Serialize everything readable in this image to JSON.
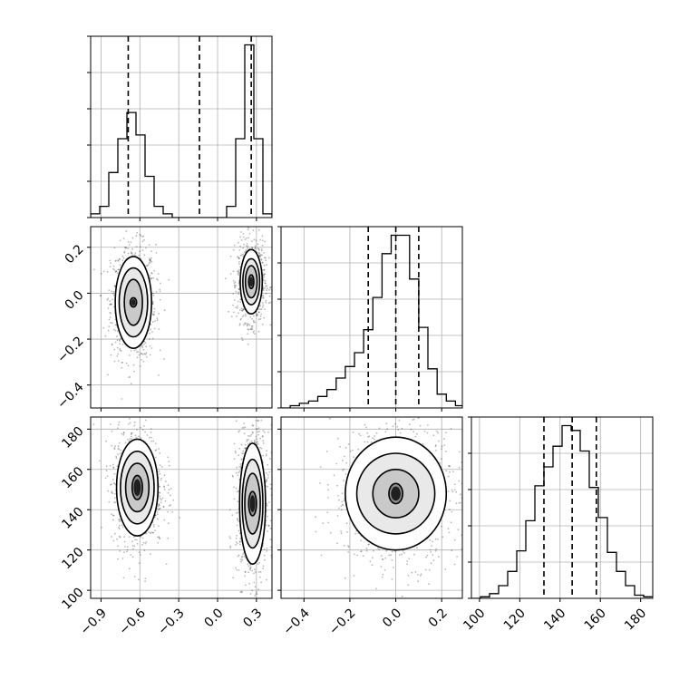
{
  "chart_data": {
    "type": "corner",
    "variables": [
      {
        "ticks": [
          -0.9,
          -0.6,
          -0.3,
          0.0,
          0.3
        ],
        "labels": [
          "−0.9",
          "−0.6",
          "−0.3",
          "0.0",
          "0.3"
        ],
        "range": [
          -0.98,
          0.42
        ]
      },
      {
        "ticks": [
          -0.4,
          -0.2,
          0.0,
          0.2
        ],
        "labels": [
          "−0.4",
          "−0.2",
          "0.0",
          "0.2"
        ],
        "range": [
          -0.5,
          0.29
        ]
      },
      {
        "ticks": [
          100,
          120,
          140,
          160,
          180
        ],
        "labels": [
          "100",
          "120",
          "140",
          "160",
          "180"
        ],
        "range": [
          96,
          186
        ]
      }
    ],
    "diagonal": [
      {
        "quantiles": [
          -0.69,
          -0.14,
          0.26
        ],
        "bin_edges": [
          -0.98,
          -0.91,
          -0.84,
          -0.77,
          -0.7,
          -0.63,
          -0.56,
          -0.49,
          -0.42,
          -0.35,
          -0.28,
          -0.21,
          -0.14,
          -0.07,
          0.0,
          0.07,
          0.14,
          0.21,
          0.28,
          0.35,
          0.42
        ],
        "counts": [
          1,
          3,
          12,
          21,
          28,
          22,
          11,
          3,
          1,
          0,
          0,
          0,
          0,
          0,
          0,
          3,
          21,
          46,
          21,
          1
        ]
      },
      {
        "quantiles": [
          -0.12,
          0.0,
          0.1
        ],
        "bin_edges": [
          -0.5,
          -0.46,
          -0.42,
          -0.38,
          -0.34,
          -0.3,
          -0.26,
          -0.22,
          -0.18,
          -0.14,
          -0.1,
          -0.06,
          -0.02,
          0.02,
          0.06,
          0.1,
          0.14,
          0.18,
          0.22,
          0.26,
          0.3
        ],
        "counts": [
          0,
          1,
          2,
          3,
          5,
          8,
          13,
          18,
          24,
          34,
          48,
          67,
          75,
          75,
          56,
          35,
          17,
          6,
          3,
          1
        ]
      },
      {
        "quantiles": [
          132,
          146,
          158
        ],
        "bin_edges": [
          96,
          100.5,
          105,
          109.5,
          114,
          118.5,
          123,
          127.5,
          132,
          136.5,
          141,
          145.5,
          150,
          154.5,
          159,
          163.5,
          168,
          172.5,
          177,
          181.5,
          186
        ],
        "counts": [
          0,
          1,
          3,
          8,
          17,
          30,
          49,
          71,
          83,
          96,
          109,
          106,
          93,
          70,
          51,
          29,
          17,
          8,
          2,
          1
        ]
      }
    ],
    "pairs": [
      {
        "row": 1,
        "col": 0,
        "modes": [
          {
            "center": [
              -0.65,
              -0.04
            ],
            "radii": [
              [
                0.025,
                0.02
              ],
              [
                0.07,
                0.1
              ],
              [
                0.11,
                0.15
              ],
              [
                0.14,
                0.2
              ]
            ]
          },
          {
            "center": [
              0.26,
              0.05
            ],
            "radii": [
              [
                0.02,
                0.03
              ],
              [
                0.045,
                0.07
              ],
              [
                0.065,
                0.1
              ],
              [
                0.085,
                0.14
              ]
            ]
          }
        ]
      },
      {
        "row": 2,
        "col": 0,
        "modes": [
          {
            "center": [
              -0.62,
              151
            ],
            "radii": [
              [
                0.04,
                6
              ],
              [
                0.09,
                12
              ],
              [
                0.13,
                18
              ],
              [
                0.16,
                24
              ]
            ]
          },
          {
            "center": [
              0.27,
              143
            ],
            "radii": [
              [
                0.03,
                6
              ],
              [
                0.06,
                15
              ],
              [
                0.08,
                22
              ],
              [
                0.1,
                30
              ]
            ]
          }
        ]
      },
      {
        "row": 2,
        "col": 1,
        "modes": [
          {
            "center": [
              0.0,
              148
            ],
            "radii": [
              [
                0.03,
                5
              ],
              [
                0.1,
                12
              ],
              [
                0.17,
                20
              ],
              [
                0.22,
                28
              ]
            ]
          }
        ]
      }
    ],
    "grid": true
  }
}
